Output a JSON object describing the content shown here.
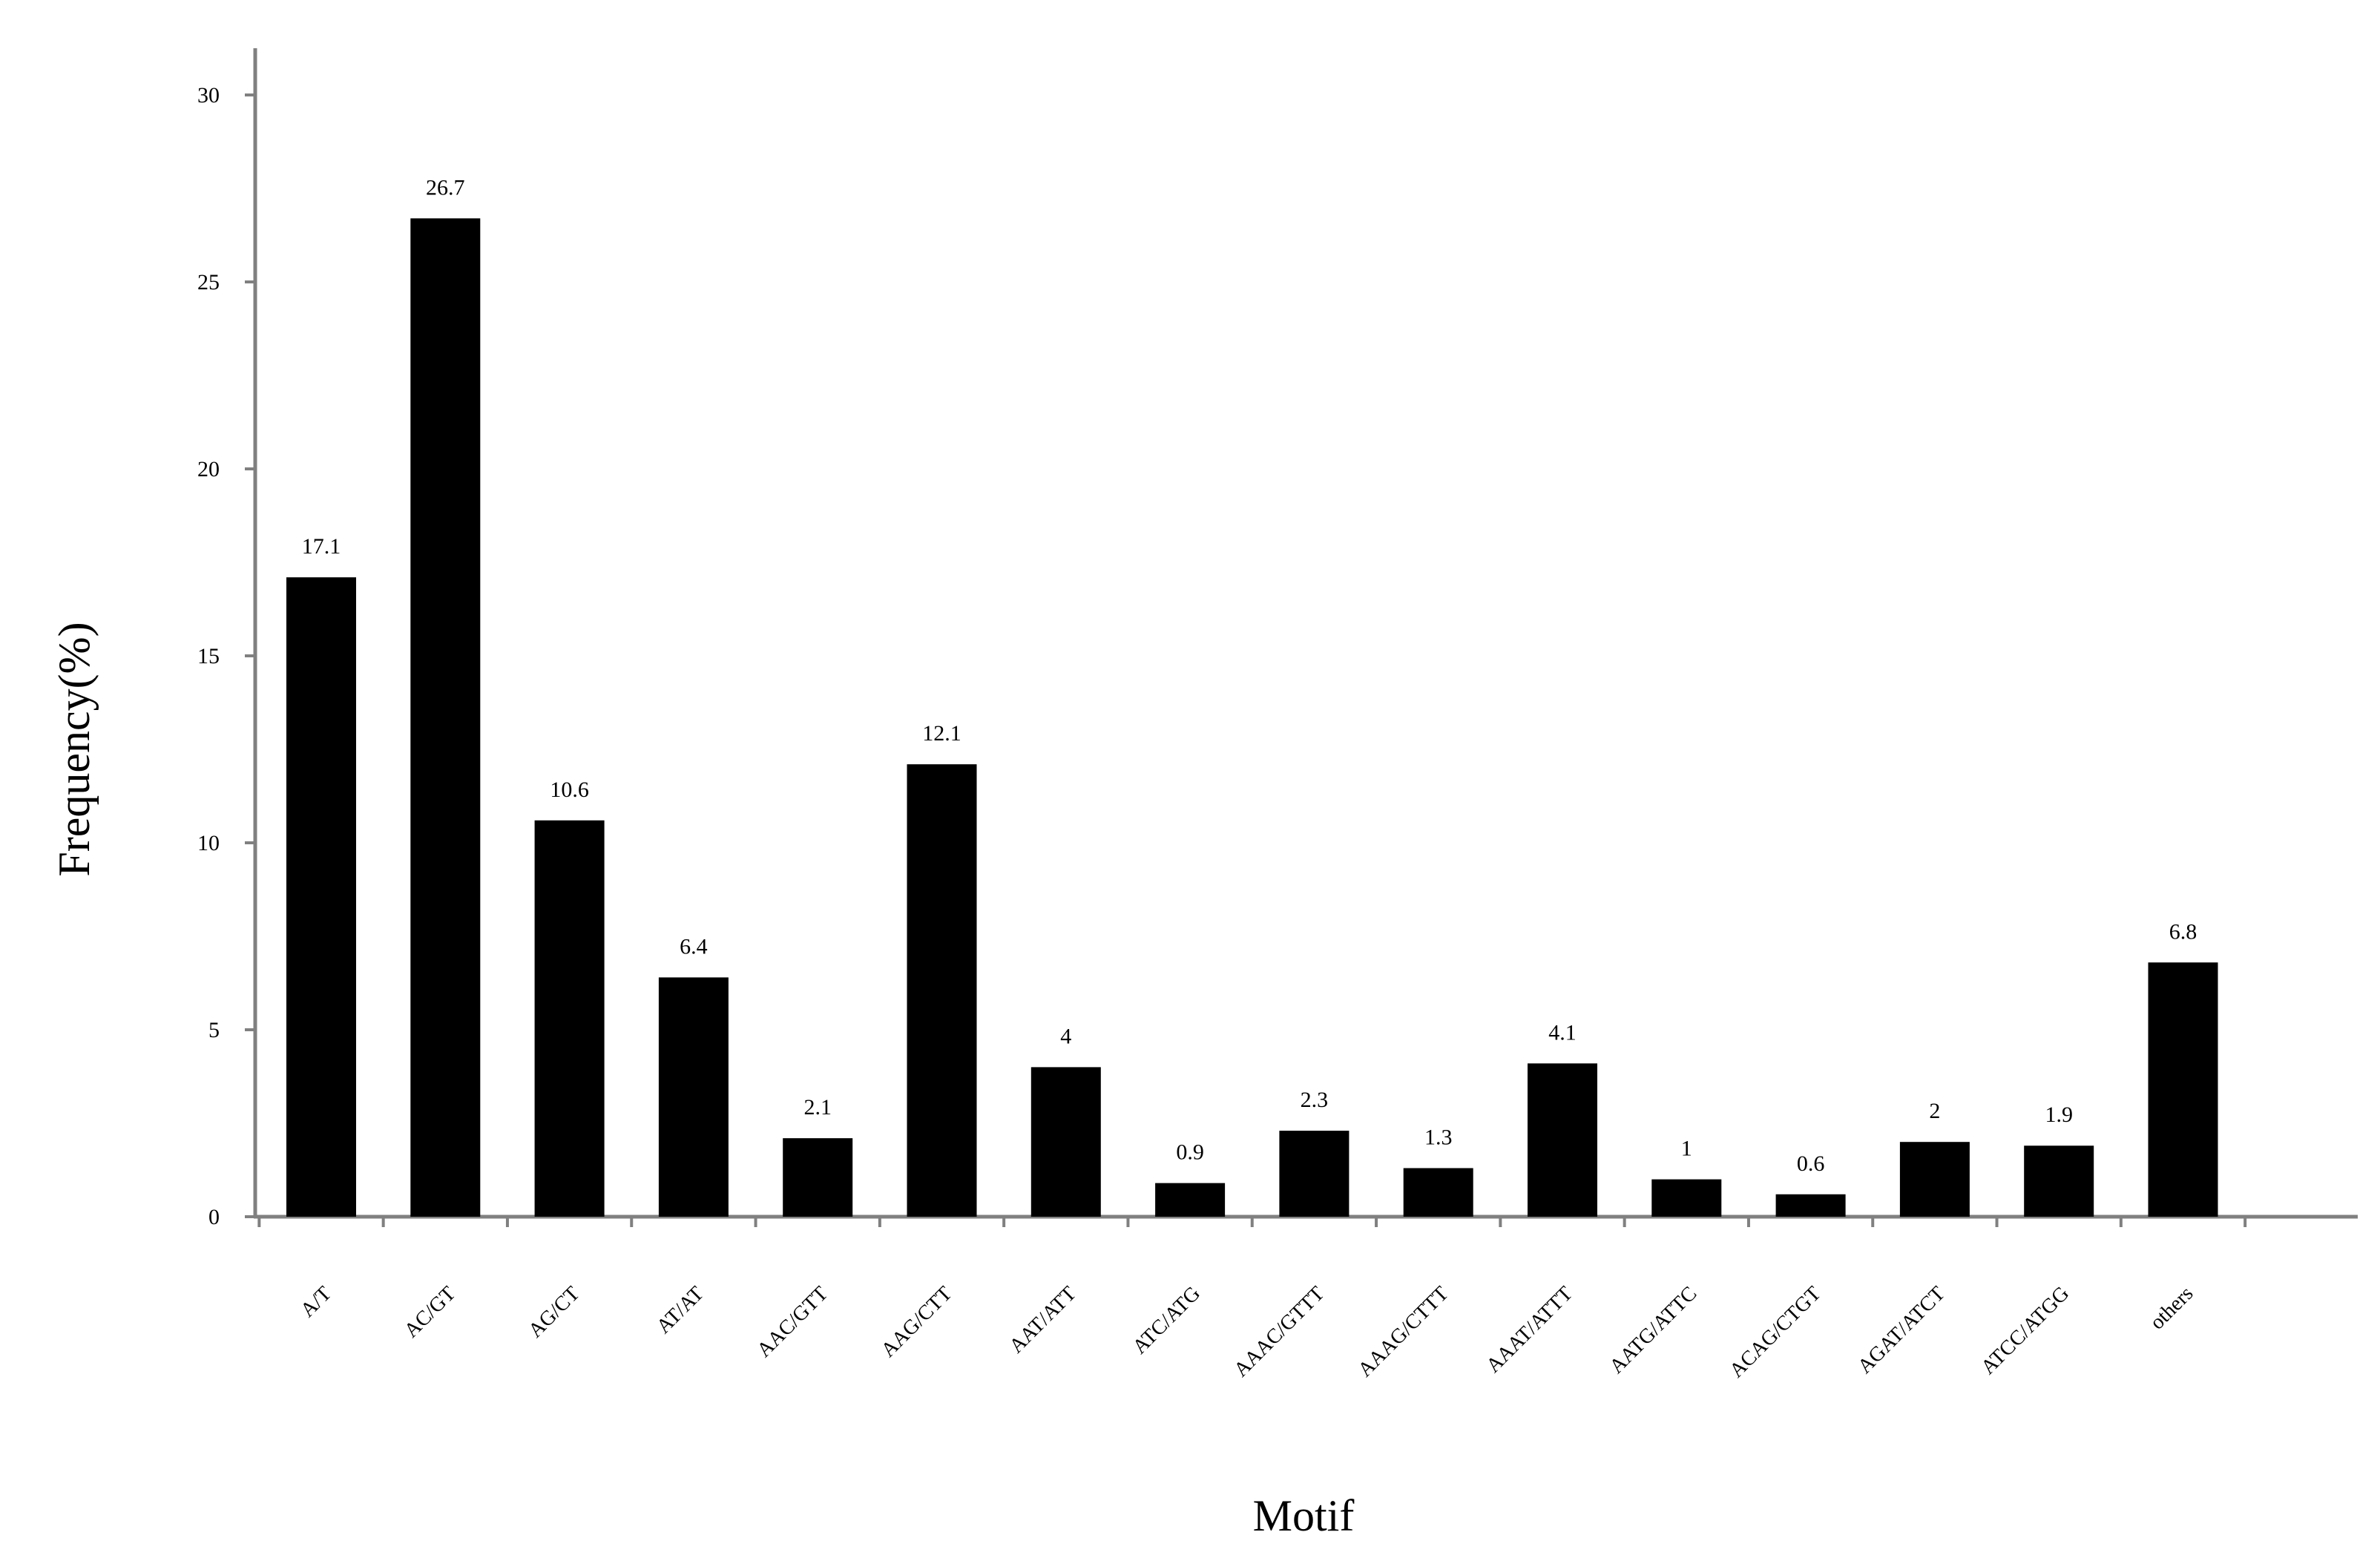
{
  "chart_data": {
    "type": "bar",
    "title": "",
    "xlabel": "Motif",
    "ylabel": "Frequency(%)",
    "ylim": [
      0,
      30
    ],
    "yticks": [
      0,
      5,
      10,
      15,
      20,
      25,
      30
    ],
    "grid": false,
    "legend": "none",
    "categories": [
      "A/T",
      "AC/GT",
      "AG/CT",
      "AT/AT",
      "AAC/GTT",
      "AAG/CTT",
      "AAT/ATT",
      "ATC/ATG",
      "AAAC/GTTT",
      "AAAG/CTTT",
      "AAAT/ATTT",
      "AATG/ATTC",
      "ACAG/CTGT",
      "AGAT/ATCT",
      "ATCC/ATGG",
      "others"
    ],
    "values": [
      17.1,
      26.7,
      10.6,
      6.4,
      2.1,
      12.1,
      4,
      0.9,
      2.3,
      1.3,
      4.1,
      1,
      0.6,
      2,
      1.9,
      6.8
    ],
    "data_labels": [
      "17.1",
      "26.7",
      "10.6",
      "6.4",
      "2.1",
      "12.1",
      "4",
      "0.9",
      "2.3",
      "1.3",
      "4.1",
      "1",
      "0.6",
      "2",
      "1.9",
      "6.8"
    ],
    "bar_color": "#000000",
    "axis_color": "#808080"
  }
}
